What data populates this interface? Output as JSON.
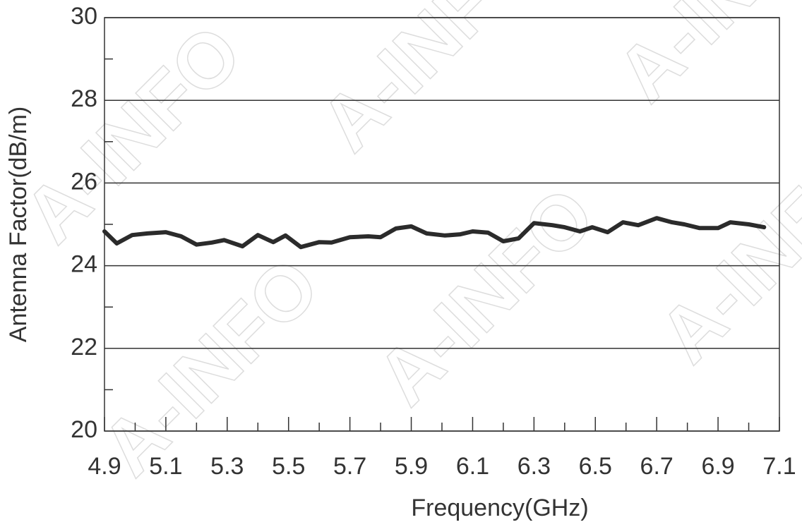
{
  "chart_data": {
    "type": "line",
    "xlabel": "Frequency(GHz)",
    "ylabel": "Antenna Factor(dB/m)",
    "watermark": "A-INFO",
    "x": [
      4.9,
      4.94,
      4.99,
      5.04,
      5.1,
      5.15,
      5.2,
      5.25,
      5.29,
      5.35,
      5.4,
      5.45,
      5.49,
      5.54,
      5.6,
      5.64,
      5.7,
      5.76,
      5.8,
      5.85,
      5.9,
      5.95,
      6.01,
      6.06,
      6.1,
      6.15,
      6.2,
      6.25,
      6.3,
      6.36,
      6.4,
      6.45,
      6.49,
      6.54,
      6.59,
      6.64,
      6.7,
      6.75,
      6.79,
      6.84,
      6.9,
      6.94,
      7.0,
      7.05
    ],
    "values": [
      24.83,
      24.54,
      24.74,
      24.78,
      24.81,
      24.71,
      24.51,
      24.56,
      24.62,
      24.47,
      24.74,
      24.57,
      24.73,
      24.45,
      24.57,
      24.56,
      24.69,
      24.71,
      24.69,
      24.9,
      24.95,
      24.78,
      24.73,
      24.76,
      24.83,
      24.8,
      24.59,
      24.66,
      25.03,
      24.98,
      24.93,
      24.83,
      24.93,
      24.81,
      25.05,
      24.98,
      25.15,
      25.05,
      25.0,
      24.91,
      24.91,
      25.05,
      25.0,
      24.93
    ],
    "color": "#2b2b2b",
    "xlim": [
      4.9,
      7.1
    ],
    "xticks": [
      4.9,
      5.1,
      5.3,
      5.5,
      5.7,
      5.9,
      6.1,
      6.3,
      6.5,
      6.7,
      6.9,
      7.1
    ],
    "xminorticks": [
      5.0,
      5.2,
      5.4,
      5.6,
      5.8,
      6.0,
      6.2,
      6.4,
      6.6,
      6.8,
      7.0
    ],
    "ylim": [
      20,
      30
    ],
    "yticks": [
      20,
      22,
      24,
      26,
      28,
      30
    ],
    "yminorticks": [
      21,
      23,
      25,
      27,
      29
    ],
    "grid": true
  }
}
